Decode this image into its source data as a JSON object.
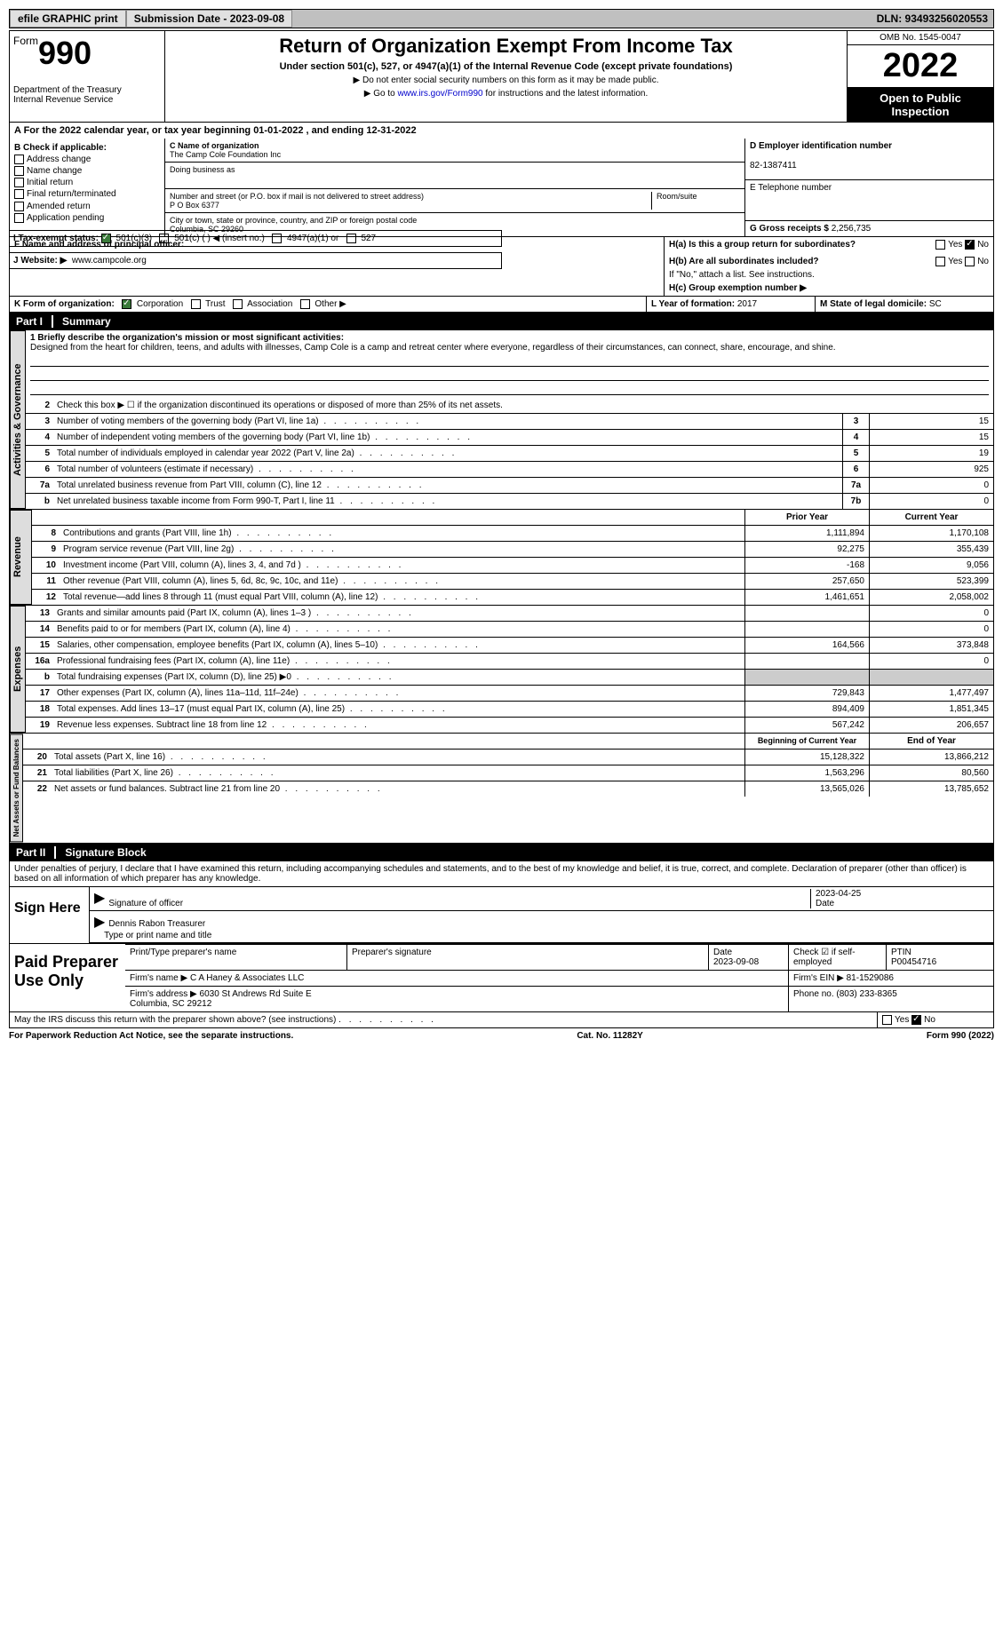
{
  "topbar": {
    "efile": "efile GRAPHIC print",
    "subdate_label": "Submission Date - 2023-09-08",
    "dln": "DLN: 93493256020553"
  },
  "header": {
    "form_word": "Form",
    "form_num": "990",
    "dept": "Department of the Treasury\nInternal Revenue Service",
    "title": "Return of Organization Exempt From Income Tax",
    "section": "Under section 501(c), 527, or 4947(a)(1) of the Internal Revenue Code (except private foundations)",
    "note1": "▶ Do not enter social security numbers on this form as it may be made public.",
    "note2_pre": "▶ Go to ",
    "note2_link": "www.irs.gov/Form990",
    "note2_post": " for instructions and the latest information.",
    "omb": "OMB No. 1545-0047",
    "year": "2022",
    "open": "Open to Public Inspection"
  },
  "A": {
    "text": "A For the 2022 calendar year, or tax year beginning 01-01-2022    , and ending 12-31-2022"
  },
  "B": {
    "label": "B Check if applicable:",
    "items": [
      "Address change",
      "Name change",
      "Initial return",
      "Final return/terminated",
      "Amended return",
      "Application pending"
    ]
  },
  "C": {
    "name_label": "C Name of organization",
    "name": "The Camp Cole Foundation Inc",
    "dba_label": "Doing business as",
    "addr_label": "Number and street (or P.O. box if mail is not delivered to street address)",
    "addr": "P O Box 6377",
    "room_label": "Room/suite",
    "city_label": "City or town, state or province, country, and ZIP or foreign postal code",
    "city": "Columbia, SC  29260"
  },
  "D": {
    "label": "D Employer identification number",
    "ein": "82-1387411"
  },
  "E": {
    "label": "E Telephone number",
    "val": ""
  },
  "F": {
    "label": "F Name and address of principal officer:"
  },
  "G": {
    "label": "G Gross receipts $",
    "val": "2,256,735"
  },
  "H": {
    "a": "H(a)  Is this a group return for subordinates?",
    "b": "H(b)  Are all subordinates included?",
    "note": "If \"No,\" attach a list. See instructions.",
    "c": "H(c)  Group exemption number ▶"
  },
  "I": {
    "label": "I   Tax-exempt status:",
    "opts": [
      "501(c)(3)",
      "501(c) (  ) ◀ (insert no.)",
      "4947(a)(1) or",
      "527"
    ]
  },
  "J": {
    "label": "J  Website: ▶",
    "val": "www.campcole.org"
  },
  "K": {
    "label": "K Form of organization:",
    "opts": [
      "Corporation",
      "Trust",
      "Association",
      "Other ▶"
    ]
  },
  "L": {
    "label": "L Year of formation:",
    "val": "2017"
  },
  "M": {
    "label": "M State of legal domicile:",
    "val": "SC"
  },
  "part1": {
    "title": "Summary",
    "partnum": "Part I",
    "mission_label": "1   Briefly describe the organization's mission or most significant activities:",
    "mission": "Designed from the heart for children, teens, and adults with illnesses, Camp Cole is a camp and retreat center where everyone, regardless of their circumstances, can connect, share, encourage, and shine.",
    "line2": "Check this box ▶ ☐ if the organization discontinued its operations or disposed of more than 25% of its net assets.",
    "gov_lines": [
      {
        "n": "3",
        "d": "Number of voting members of the governing body (Part VI, line 1a)",
        "box": "3",
        "v": "15"
      },
      {
        "n": "4",
        "d": "Number of independent voting members of the governing body (Part VI, line 1b)",
        "box": "4",
        "v": "15"
      },
      {
        "n": "5",
        "d": "Total number of individuals employed in calendar year 2022 (Part V, line 2a)",
        "box": "5",
        "v": "19"
      },
      {
        "n": "6",
        "d": "Total number of volunteers (estimate if necessary)",
        "box": "6",
        "v": "925"
      },
      {
        "n": "7a",
        "d": "Total unrelated business revenue from Part VIII, column (C), line 12",
        "box": "7a",
        "v": "0"
      },
      {
        "n": "b",
        "d": "Net unrelated business taxable income from Form 990-T, Part I, line 11",
        "box": "7b",
        "v": "0"
      }
    ],
    "col_py": "Prior Year",
    "col_cy": "Current Year",
    "rev_lines": [
      {
        "n": "8",
        "d": "Contributions and grants (Part VIII, line 1h)",
        "py": "1,111,894",
        "cy": "1,170,108"
      },
      {
        "n": "9",
        "d": "Program service revenue (Part VIII, line 2g)",
        "py": "92,275",
        "cy": "355,439"
      },
      {
        "n": "10",
        "d": "Investment income (Part VIII, column (A), lines 3, 4, and 7d )",
        "py": "-168",
        "cy": "9,056"
      },
      {
        "n": "11",
        "d": "Other revenue (Part VIII, column (A), lines 5, 6d, 8c, 9c, 10c, and 11e)",
        "py": "257,650",
        "cy": "523,399"
      },
      {
        "n": "12",
        "d": "Total revenue—add lines 8 through 11 (must equal Part VIII, column (A), line 12)",
        "py": "1,461,651",
        "cy": "2,058,002"
      }
    ],
    "exp_lines": [
      {
        "n": "13",
        "d": "Grants and similar amounts paid (Part IX, column (A), lines 1–3 )",
        "py": "",
        "cy": "0"
      },
      {
        "n": "14",
        "d": "Benefits paid to or for members (Part IX, column (A), line 4)",
        "py": "",
        "cy": "0"
      },
      {
        "n": "15",
        "d": "Salaries, other compensation, employee benefits (Part IX, column (A), lines 5–10)",
        "py": "164,566",
        "cy": "373,848"
      },
      {
        "n": "16a",
        "d": "Professional fundraising fees (Part IX, column (A), line 11e)",
        "py": "",
        "cy": "0"
      },
      {
        "n": "b",
        "d": "Total fundraising expenses (Part IX, column (D), line 25) ▶0",
        "py": "SHADE",
        "cy": "SHADE"
      },
      {
        "n": "17",
        "d": "Other expenses (Part IX, column (A), lines 11a–11d, 11f–24e)",
        "py": "729,843",
        "cy": "1,477,497"
      },
      {
        "n": "18",
        "d": "Total expenses. Add lines 13–17 (must equal Part IX, column (A), line 25)",
        "py": "894,409",
        "cy": "1,851,345"
      },
      {
        "n": "19",
        "d": "Revenue less expenses. Subtract line 18 from line 12",
        "py": "567,242",
        "cy": "206,657"
      }
    ],
    "col_boy": "Beginning of Current Year",
    "col_eoy": "End of Year",
    "net_lines": [
      {
        "n": "20",
        "d": "Total assets (Part X, line 16)",
        "py": "15,128,322",
        "cy": "13,866,212"
      },
      {
        "n": "21",
        "d": "Total liabilities (Part X, line 26)",
        "py": "1,563,296",
        "cy": "80,560"
      },
      {
        "n": "22",
        "d": "Net assets or fund balances. Subtract line 21 from line 20",
        "py": "13,565,026",
        "cy": "13,785,652"
      }
    ],
    "labels": {
      "gov": "Activities & Governance",
      "rev": "Revenue",
      "exp": "Expenses",
      "net": "Net Assets or Fund Balances"
    }
  },
  "part2": {
    "partnum": "Part II",
    "title": "Signature Block",
    "penalty": "Under penalties of perjury, I declare that I have examined this return, including accompanying schedules and statements, and to the best of my knowledge and belief, it is true, correct, and complete. Declaration of preparer (other than officer) is based on all information of which preparer has any knowledge."
  },
  "sign": {
    "label": "Sign Here",
    "sig_label": "Signature of officer",
    "date": "2023-04-25",
    "date_label": "Date",
    "name": "Dennis Rabon  Treasurer",
    "name_label": "Type or print name and title"
  },
  "prep": {
    "label": "Paid Preparer Use Only",
    "name_label": "Print/Type preparer's name",
    "sig_label": "Preparer's signature",
    "date_label": "Date",
    "date": "2023-09-08",
    "self_label": "Check ☑ if self-employed",
    "ptin_label": "PTIN",
    "ptin": "P00454716",
    "firm_name_label": "Firm's name    ▶",
    "firm_name": "C A Haney & Associates LLC",
    "firm_ein_label": "Firm's EIN ▶",
    "firm_ein": "81-1529086",
    "firm_addr_label": "Firm's address ▶",
    "firm_addr": "6030 St Andrews Rd Suite E\nColumbia, SC  29212",
    "phone_label": "Phone no.",
    "phone": "(803) 233-8365"
  },
  "discuss": "May the IRS discuss this return with the preparer shown above? (see instructions)",
  "footer": {
    "left": "For Paperwork Reduction Act Notice, see the separate instructions.",
    "mid": "Cat. No. 11282Y",
    "right": "Form 990 (2022)"
  }
}
